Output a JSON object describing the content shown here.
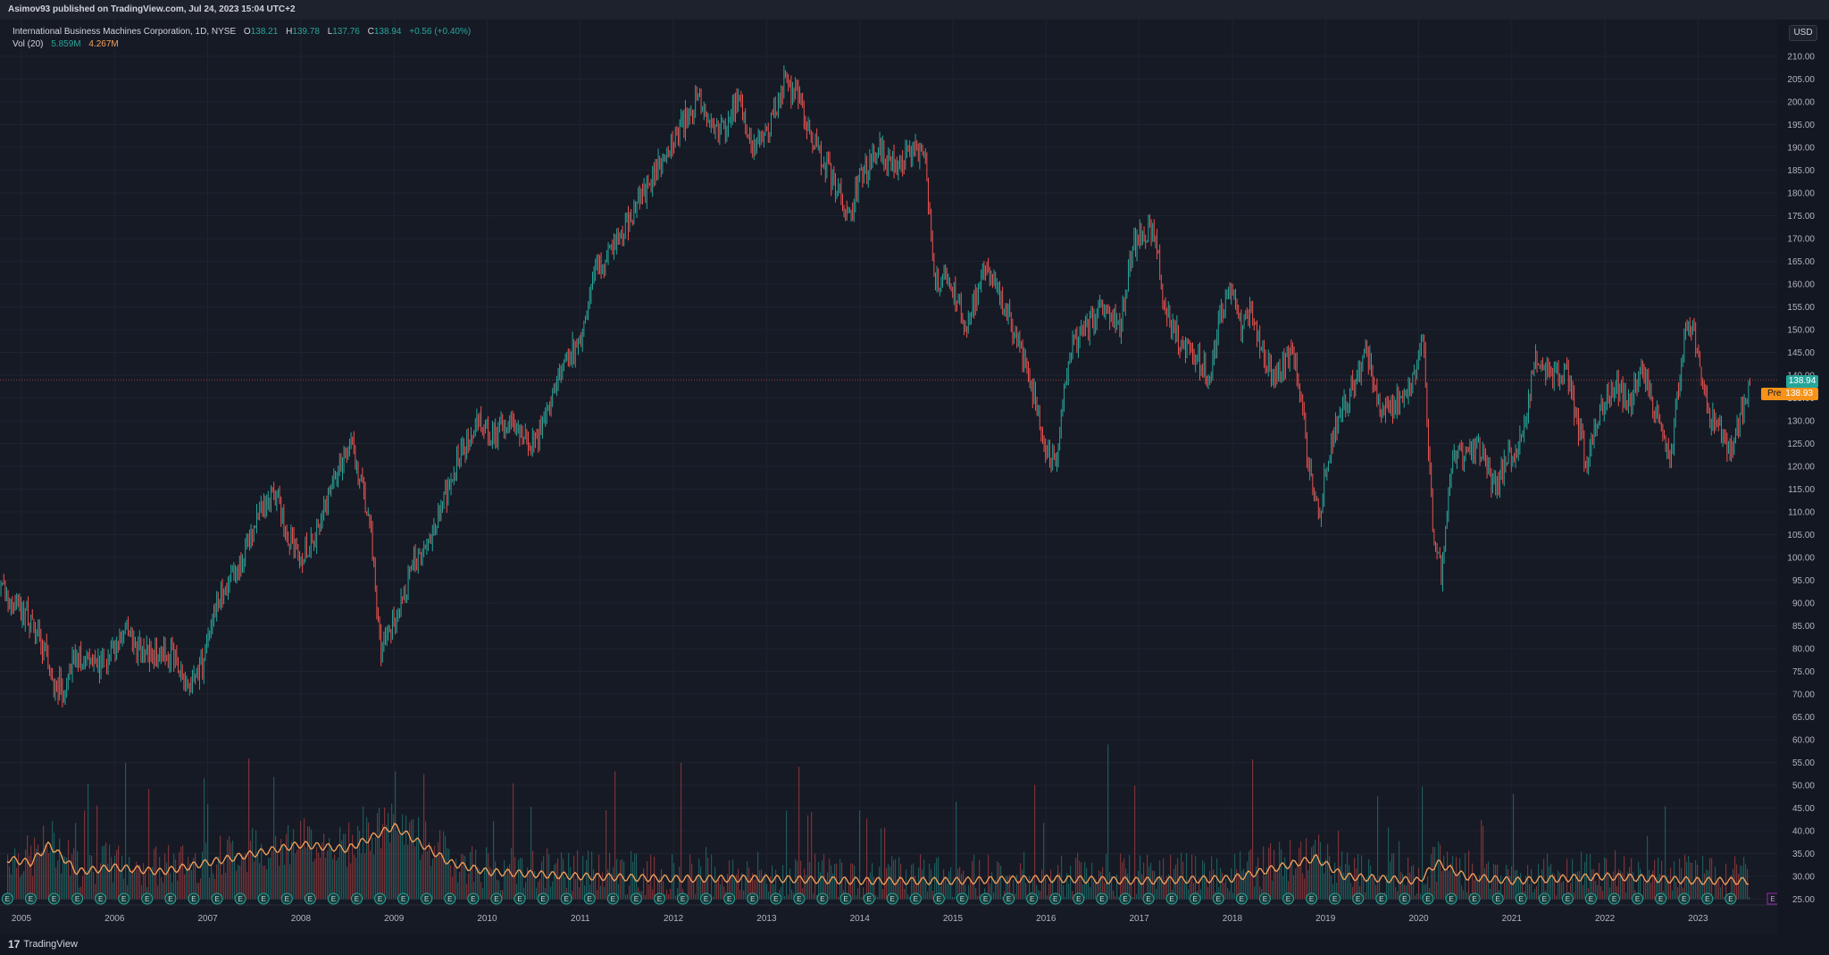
{
  "header": {
    "published_text": "Asimov93 published on TradingView.com, Jul 24, 2023 15:04 UTC+2"
  },
  "legend": {
    "symbol": "International Business Machines Corporation, 1D, NYSE",
    "o_label": "O",
    "o_value": "138.21",
    "h_label": "H",
    "h_value": "139.78",
    "l_label": "L",
    "l_value": "137.76",
    "c_label": "C",
    "c_value": "138.94",
    "change": "+0.56 (+0.40%)",
    "vol_label": "Vol (20)",
    "vol_value": "5.859M",
    "vol_ma_value": "4.267M"
  },
  "price_scale": {
    "currency": "USD",
    "last_price": "138.94",
    "premarket_label": "Pre",
    "premarket_price": "138.93"
  },
  "footer": {
    "logo_mark": "17",
    "logo_text": "TradingView"
  },
  "colors": {
    "background": "#131722",
    "up": "#26a69a",
    "down": "#ef5350",
    "volume_ma": "#f7a35c",
    "grid": "#1f2330",
    "premarket": "#f7931a"
  },
  "earnings_marker_label": "E",
  "chart_data": {
    "type": "candlestick",
    "title": "International Business Machines Corporation, 1D, NYSE",
    "ylim": [
      25,
      210
    ],
    "y_ticks": [
      "210.00",
      "205.00",
      "200.00",
      "195.00",
      "190.00",
      "185.00",
      "180.00",
      "175.00",
      "170.00",
      "165.00",
      "160.00",
      "155.00",
      "150.00",
      "145.00",
      "140.00",
      "135.00",
      "130.00",
      "125.00",
      "120.00",
      "115.00",
      "110.00",
      "105.00",
      "100.00",
      "95.00",
      "90.00",
      "85.00",
      "80.00",
      "75.00",
      "70.00",
      "65.00",
      "60.00",
      "55.00",
      "50.00",
      "45.00",
      "40.00",
      "35.00",
      "30.00",
      "25.00"
    ],
    "x_ticks": [
      "2005",
      "2006",
      "2007",
      "2008",
      "2009",
      "2010",
      "2011",
      "2012",
      "2013",
      "2014",
      "2015",
      "2016",
      "2017",
      "2018",
      "2019",
      "2020",
      "2021",
      "2022",
      "2023"
    ],
    "price_path": [
      [
        2004.55,
        88
      ],
      [
        2004.7,
        95
      ],
      [
        2004.85,
        91
      ],
      [
        2004.95,
        89
      ],
      [
        2005.1,
        86
      ],
      [
        2005.25,
        80
      ],
      [
        2005.3,
        74
      ],
      [
        2005.45,
        71
      ],
      [
        2005.55,
        78
      ],
      [
        2005.8,
        76
      ],
      [
        2006.0,
        80
      ],
      [
        2006.1,
        85
      ],
      [
        2006.25,
        80
      ],
      [
        2006.45,
        78
      ],
      [
        2006.6,
        79
      ],
      [
        2006.8,
        72
      ],
      [
        2006.95,
        77
      ],
      [
        2007.05,
        88
      ],
      [
        2007.2,
        93
      ],
      [
        2007.3,
        96
      ],
      [
        2007.45,
        105
      ],
      [
        2007.6,
        112
      ],
      [
        2007.75,
        113
      ],
      [
        2007.85,
        105
      ],
      [
        2008.0,
        100
      ],
      [
        2008.2,
        107
      ],
      [
        2008.4,
        120
      ],
      [
        2008.55,
        125
      ],
      [
        2008.65,
        116
      ],
      [
        2008.75,
        105
      ],
      [
        2008.85,
        80
      ],
      [
        2008.95,
        84
      ],
      [
        2009.05,
        87
      ],
      [
        2009.2,
        98
      ],
      [
        2009.35,
        103
      ],
      [
        2009.5,
        110
      ],
      [
        2009.7,
        122
      ],
      [
        2009.9,
        130
      ],
      [
        2010.1,
        127
      ],
      [
        2010.3,
        130
      ],
      [
        2010.45,
        124
      ],
      [
        2010.6,
        129
      ],
      [
        2010.75,
        140
      ],
      [
        2010.9,
        145
      ],
      [
        2011.0,
        147
      ],
      [
        2011.15,
        163
      ],
      [
        2011.35,
        167
      ],
      [
        2011.55,
        175
      ],
      [
        2011.7,
        181
      ],
      [
        2011.85,
        186
      ],
      [
        2012.0,
        192
      ],
      [
        2012.25,
        200
      ],
      [
        2012.5,
        193
      ],
      [
        2012.7,
        200
      ],
      [
        2012.85,
        190
      ],
      [
        2013.0,
        193
      ],
      [
        2013.2,
        205
      ],
      [
        2013.35,
        200
      ],
      [
        2013.5,
        192
      ],
      [
        2013.7,
        183
      ],
      [
        2013.9,
        175
      ],
      [
        2014.0,
        183
      ],
      [
        2014.2,
        190
      ],
      [
        2014.4,
        185
      ],
      [
        2014.55,
        190
      ],
      [
        2014.7,
        187
      ],
      [
        2014.8,
        160
      ],
      [
        2014.95,
        162
      ],
      [
        2015.15,
        151
      ],
      [
        2015.35,
        164
      ],
      [
        2015.5,
        158
      ],
      [
        2015.7,
        148
      ],
      [
        2015.85,
        137
      ],
      [
        2016.0,
        124
      ],
      [
        2016.1,
        120
      ],
      [
        2016.25,
        146
      ],
      [
        2016.45,
        150
      ],
      [
        2016.6,
        155
      ],
      [
        2016.8,
        150
      ],
      [
        2016.9,
        166
      ],
      [
        2017.0,
        170
      ],
      [
        2017.15,
        173
      ],
      [
        2017.25,
        158
      ],
      [
        2017.35,
        150
      ],
      [
        2017.55,
        145
      ],
      [
        2017.75,
        140
      ],
      [
        2017.9,
        155
      ],
      [
        2018.0,
        160
      ],
      [
        2018.1,
        150
      ],
      [
        2018.2,
        155
      ],
      [
        2018.35,
        143
      ],
      [
        2018.5,
        140
      ],
      [
        2018.65,
        145
      ],
      [
        2018.75,
        133
      ],
      [
        2018.85,
        115
      ],
      [
        2018.95,
        110
      ],
      [
        2019.0,
        120
      ],
      [
        2019.15,
        131
      ],
      [
        2019.3,
        138
      ],
      [
        2019.45,
        145
      ],
      [
        2019.6,
        132
      ],
      [
        2019.8,
        134
      ],
      [
        2019.95,
        140
      ],
      [
        2020.05,
        148
      ],
      [
        2020.15,
        106
      ],
      [
        2020.25,
        96
      ],
      [
        2020.35,
        120
      ],
      [
        2020.5,
        124
      ],
      [
        2020.65,
        125
      ],
      [
        2020.8,
        115
      ],
      [
        2020.95,
        122
      ],
      [
        2021.1,
        125
      ],
      [
        2021.25,
        143
      ],
      [
        2021.45,
        140
      ],
      [
        2021.6,
        140
      ],
      [
        2021.8,
        121
      ],
      [
        2021.95,
        132
      ],
      [
        2022.1,
        138
      ],
      [
        2022.25,
        133
      ],
      [
        2022.4,
        142
      ],
      [
        2022.55,
        131
      ],
      [
        2022.7,
        120
      ],
      [
        2022.85,
        148
      ],
      [
        2022.95,
        150
      ],
      [
        2023.1,
        132
      ],
      [
        2023.25,
        128
      ],
      [
        2023.35,
        124
      ],
      [
        2023.5,
        134
      ],
      [
        2023.56,
        138.94
      ]
    ],
    "volume_ma_path": [
      [
        2004.55,
        31
      ],
      [
        2004.8,
        34
      ],
      [
        2005.1,
        33
      ],
      [
        2005.3,
        37
      ],
      [
        2005.6,
        31
      ],
      [
        2006.0,
        32
      ],
      [
        2006.5,
        31
      ],
      [
        2007.0,
        33
      ],
      [
        2007.5,
        35
      ],
      [
        2008.0,
        37
      ],
      [
        2008.5,
        36
      ],
      [
        2008.8,
        39
      ],
      [
        2009.0,
        41
      ],
      [
        2009.3,
        37
      ],
      [
        2009.6,
        33
      ],
      [
        2010.0,
        31
      ],
      [
        2011.0,
        30
      ],
      [
        2012.0,
        29.5
      ],
      [
        2013.0,
        29.5
      ],
      [
        2014.0,
        29
      ],
      [
        2015.0,
        29
      ],
      [
        2016.0,
        29.5
      ],
      [
        2017.0,
        29
      ],
      [
        2018.0,
        29.5
      ],
      [
        2018.9,
        34
      ],
      [
        2019.2,
        30
      ],
      [
        2020.0,
        29
      ],
      [
        2020.2,
        33
      ],
      [
        2020.5,
        30
      ],
      [
        2021.0,
        29
      ],
      [
        2022.0,
        30
      ],
      [
        2023.0,
        29
      ],
      [
        2023.56,
        29
      ]
    ],
    "grid": true,
    "legend": "top-left"
  }
}
